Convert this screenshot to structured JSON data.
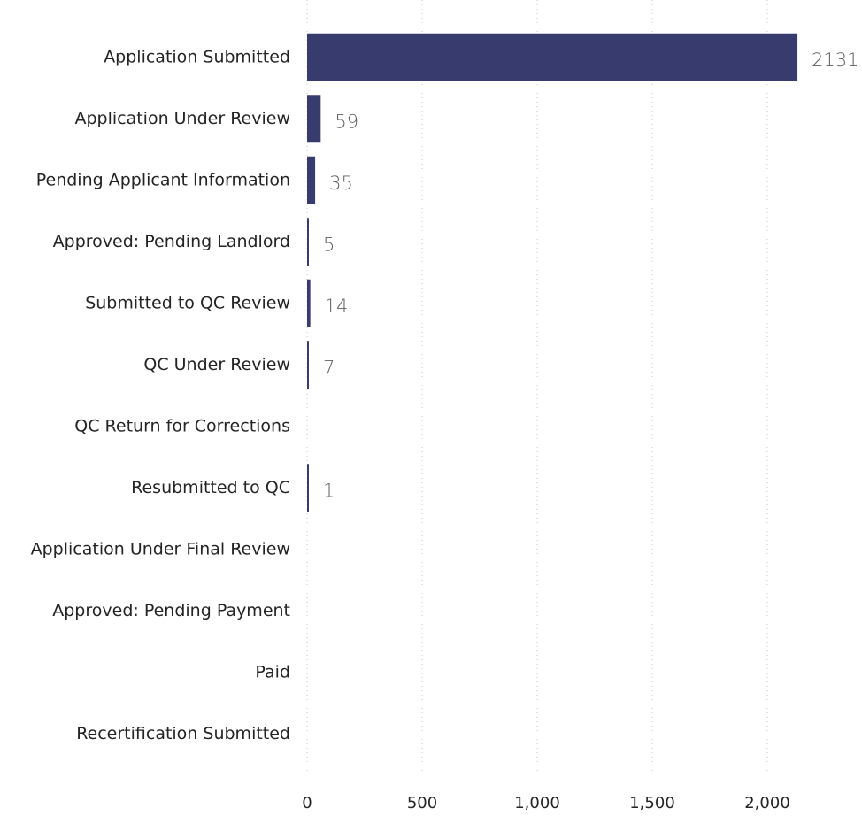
{
  "chart_data": {
    "type": "hbar",
    "categories": [
      "Application Submitted",
      "Application Under Review",
      "Pending Applicant Information",
      "Approved: Pending Landlord",
      "Submitted to QC Review",
      "QC Under Review",
      "QC Return for Corrections",
      "Resubmitted to QC",
      "Application Under Final Review",
      "Approved: Pending Payment",
      "Paid",
      "Recertification Submitted"
    ],
    "values": [
      2131,
      59,
      35,
      5,
      14,
      7,
      null,
      1,
      null,
      null,
      null,
      null
    ],
    "color": "#373b6e",
    "xlim": [
      0,
      2200
    ],
    "xticks": [
      0,
      500,
      {
        "value": 1000,
        "label": "1,000"
      },
      {
        "value": 1500,
        "label": "1,500"
      },
      {
        "value": 2000,
        "label": "2,000"
      }
    ],
    "grid": true
  }
}
